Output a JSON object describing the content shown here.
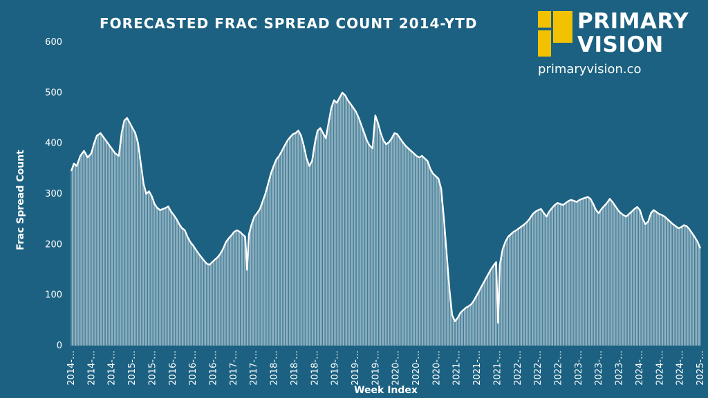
{
  "header": {
    "title": "FORECASTED FRAC SPREAD COUNT 2014-YTD"
  },
  "logo": {
    "line1": "PRIMARY",
    "line2": "VISION",
    "url": "primaryvision.co",
    "color": "#f2c200"
  },
  "colors": {
    "background": "#1c6181",
    "line": "#ffffff"
  },
  "chart_data": {
    "type": "area",
    "title": "FORECASTED FRAC SPREAD COUNT 2014-YTD",
    "xlabel": "Week Index",
    "ylabel": "Frac Spread Count",
    "ylim": [
      0,
      600
    ],
    "yticks": [
      0,
      100,
      200,
      300,
      400,
      500,
      600
    ],
    "xtick_labels": [
      "2014-…",
      "2014-…",
      "2014-…",
      "2015-…",
      "2015-…",
      "2016-…",
      "2016-…",
      "2016-…",
      "2017-…",
      "2017-…",
      "2018-…",
      "2018-…",
      "2018-…",
      "2019-…",
      "2019-…",
      "2019-…",
      "2020-…",
      "2020-…",
      "2020-…",
      "2021-…",
      "2021-…",
      "2021-…",
      "2022-…",
      "2022-…",
      "2022-…",
      "2023-…",
      "2023-…",
      "2023-…",
      "2024-…",
      "2024-…",
      "2024-…",
      "2025-…"
    ],
    "grid": false,
    "legend": "none",
    "points_per_week_approx": [
      [
        0,
        345
      ],
      [
        3,
        360
      ],
      [
        6,
        355
      ],
      [
        10,
        375
      ],
      [
        14,
        385
      ],
      [
        18,
        372
      ],
      [
        22,
        380
      ],
      [
        25,
        400
      ],
      [
        28,
        415
      ],
      [
        32,
        420
      ],
      [
        36,
        410
      ],
      [
        40,
        400
      ],
      [
        44,
        390
      ],
      [
        48,
        380
      ],
      [
        52,
        375
      ],
      [
        55,
        420
      ],
      [
        58,
        445
      ],
      [
        61,
        450
      ],
      [
        64,
        440
      ],
      [
        67,
        430
      ],
      [
        70,
        420
      ],
      [
        73,
        400
      ],
      [
        76,
        360
      ],
      [
        79,
        320
      ],
      [
        82,
        300
      ],
      [
        85,
        305
      ],
      [
        88,
        295
      ],
      [
        91,
        280
      ],
      [
        94,
        272
      ],
      [
        97,
        268
      ],
      [
        100,
        270
      ],
      [
        103,
        272
      ],
      [
        106,
        275
      ],
      [
        109,
        265
      ],
      [
        112,
        258
      ],
      [
        115,
        250
      ],
      [
        118,
        240
      ],
      [
        121,
        232
      ],
      [
        124,
        228
      ],
      [
        127,
        215
      ],
      [
        130,
        205
      ],
      [
        133,
        198
      ],
      [
        136,
        190
      ],
      [
        139,
        182
      ],
      [
        142,
        175
      ],
      [
        145,
        168
      ],
      [
        148,
        162
      ],
      [
        151,
        160
      ],
      [
        154,
        165
      ],
      [
        157,
        170
      ],
      [
        160,
        175
      ],
      [
        163,
        182
      ],
      [
        166,
        192
      ],
      [
        169,
        205
      ],
      [
        172,
        212
      ],
      [
        175,
        218
      ],
      [
        178,
        225
      ],
      [
        181,
        228
      ],
      [
        184,
        225
      ],
      [
        187,
        220
      ],
      [
        190,
        215
      ],
      [
        192,
        150
      ],
      [
        194,
        220
      ],
      [
        197,
        240
      ],
      [
        200,
        255
      ],
      [
        203,
        262
      ],
      [
        206,
        270
      ],
      [
        209,
        285
      ],
      [
        212,
        300
      ],
      [
        215,
        320
      ],
      [
        218,
        340
      ],
      [
        221,
        355
      ],
      [
        224,
        368
      ],
      [
        227,
        375
      ],
      [
        230,
        385
      ],
      [
        233,
        395
      ],
      [
        236,
        405
      ],
      [
        239,
        412
      ],
      [
        242,
        418
      ],
      [
        245,
        420
      ],
      [
        248,
        425
      ],
      [
        251,
        415
      ],
      [
        254,
        395
      ],
      [
        257,
        370
      ],
      [
        260,
        355
      ],
      [
        263,
        365
      ],
      [
        266,
        400
      ],
      [
        269,
        425
      ],
      [
        272,
        430
      ],
      [
        275,
        420
      ],
      [
        278,
        410
      ],
      [
        281,
        440
      ],
      [
        284,
        470
      ],
      [
        287,
        485
      ],
      [
        290,
        480
      ],
      [
        293,
        490
      ],
      [
        296,
        500
      ],
      [
        299,
        495
      ],
      [
        302,
        485
      ],
      [
        305,
        478
      ],
      [
        308,
        470
      ],
      [
        311,
        462
      ],
      [
        314,
        450
      ],
      [
        317,
        435
      ],
      [
        320,
        420
      ],
      [
        323,
        405
      ],
      [
        326,
        395
      ],
      [
        329,
        390
      ],
      [
        332,
        455
      ],
      [
        335,
        440
      ],
      [
        338,
        420
      ],
      [
        341,
        405
      ],
      [
        344,
        398
      ],
      [
        347,
        402
      ],
      [
        350,
        410
      ],
      [
        353,
        420
      ],
      [
        356,
        418
      ],
      [
        359,
        410
      ],
      [
        362,
        402
      ],
      [
        365,
        395
      ],
      [
        368,
        390
      ],
      [
        371,
        385
      ],
      [
        374,
        380
      ],
      [
        377,
        375
      ],
      [
        380,
        372
      ],
      [
        383,
        375
      ],
      [
        386,
        370
      ],
      [
        389,
        365
      ],
      [
        392,
        350
      ],
      [
        395,
        340
      ],
      [
        398,
        335
      ],
      [
        401,
        330
      ],
      [
        404,
        310
      ],
      [
        407,
        250
      ],
      [
        410,
        180
      ],
      [
        413,
        110
      ],
      [
        416,
        60
      ],
      [
        419,
        48
      ],
      [
        422,
        55
      ],
      [
        425,
        65
      ],
      [
        428,
        70
      ],
      [
        431,
        75
      ],
      [
        434,
        78
      ],
      [
        437,
        82
      ],
      [
        440,
        90
      ],
      [
        443,
        100
      ],
      [
        446,
        110
      ],
      [
        449,
        120
      ],
      [
        452,
        130
      ],
      [
        455,
        140
      ],
      [
        458,
        150
      ],
      [
        461,
        158
      ],
      [
        464,
        165
      ],
      [
        466,
        45
      ],
      [
        468,
        160
      ],
      [
        471,
        190
      ],
      [
        474,
        205
      ],
      [
        477,
        215
      ],
      [
        480,
        220
      ],
      [
        483,
        225
      ],
      [
        486,
        228
      ],
      [
        489,
        232
      ],
      [
        492,
        236
      ],
      [
        495,
        240
      ],
      [
        498,
        245
      ],
      [
        501,
        252
      ],
      [
        504,
        260
      ],
      [
        507,
        265
      ],
      [
        510,
        268
      ],
      [
        513,
        270
      ],
      [
        516,
        262
      ],
      [
        519,
        255
      ],
      [
        522,
        265
      ],
      [
        525,
        272
      ],
      [
        528,
        278
      ],
      [
        531,
        282
      ],
      [
        534,
        280
      ],
      [
        537,
        278
      ],
      [
        540,
        282
      ],
      [
        543,
        286
      ],
      [
        546,
        288
      ],
      [
        549,
        286
      ],
      [
        552,
        284
      ],
      [
        555,
        288
      ],
      [
        558,
        290
      ],
      [
        561,
        292
      ],
      [
        564,
        294
      ],
      [
        567,
        290
      ],
      [
        570,
        280
      ],
      [
        573,
        268
      ],
      [
        576,
        262
      ],
      [
        579,
        270
      ],
      [
        582,
        276
      ],
      [
        585,
        282
      ],
      [
        588,
        290
      ],
      [
        591,
        284
      ],
      [
        594,
        276
      ],
      [
        597,
        268
      ],
      [
        600,
        262
      ],
      [
        603,
        258
      ],
      [
        606,
        255
      ],
      [
        609,
        260
      ],
      [
        612,
        265
      ],
      [
        615,
        270
      ],
      [
        618,
        274
      ],
      [
        621,
        268
      ],
      [
        624,
        250
      ],
      [
        627,
        240
      ],
      [
        630,
        245
      ],
      [
        633,
        262
      ],
      [
        636,
        268
      ],
      [
        639,
        264
      ],
      [
        642,
        260
      ],
      [
        645,
        258
      ],
      [
        648,
        255
      ],
      [
        651,
        250
      ],
      [
        654,
        245
      ],
      [
        657,
        240
      ],
      [
        660,
        236
      ],
      [
        663,
        232
      ],
      [
        666,
        234
      ],
      [
        669,
        238
      ],
      [
        672,
        236
      ],
      [
        675,
        230
      ],
      [
        678,
        222
      ],
      [
        681,
        214
      ],
      [
        684,
        205
      ],
      [
        687,
        192
      ]
    ]
  }
}
